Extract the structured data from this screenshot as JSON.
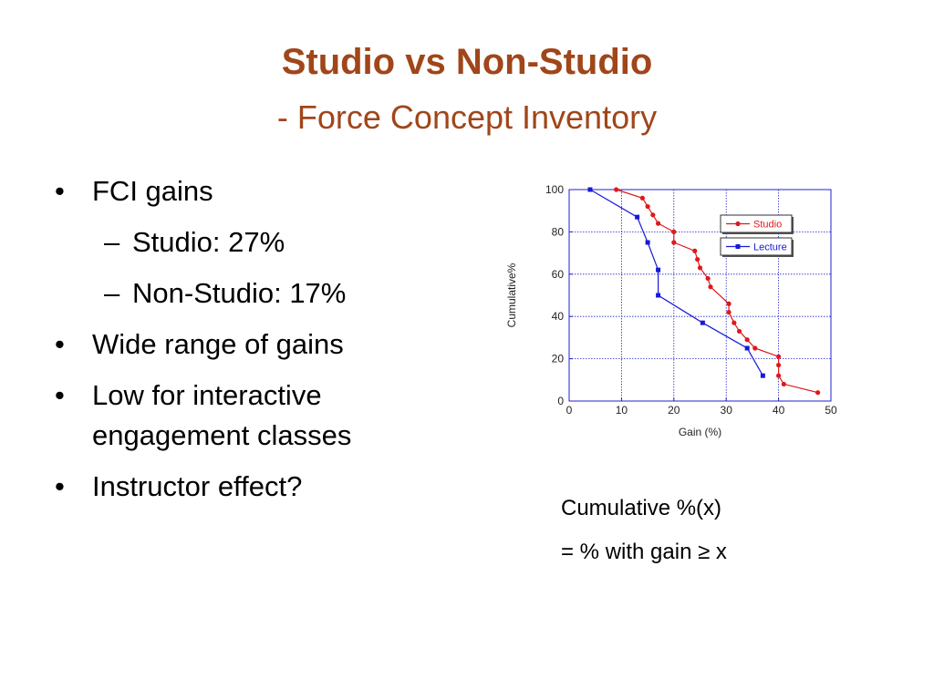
{
  "slide": {
    "title": "Studio vs Non-Studio",
    "subtitle": "- Force Concept Inventory"
  },
  "bullets": {
    "fci_gains": "FCI gains",
    "studio": "Studio:  27%",
    "non_studio": "Non-Studio:  17%",
    "wide_range": "Wide range of gains",
    "low_for": "Low for interactive engagement classes",
    "instructor": "Instructor effect?"
  },
  "note": {
    "line1": "Cumulative %(x)",
    "line2": "= % with gain ≥ x"
  },
  "chart_data": {
    "type": "line",
    "xlabel": "Gain (%)",
    "ylabel": "Cumulative%",
    "xlim": [
      0,
      50
    ],
    "ylim": [
      0,
      100
    ],
    "xticks": [
      0,
      10,
      20,
      30,
      40,
      50
    ],
    "yticks": [
      0,
      20,
      40,
      60,
      80,
      100
    ],
    "grid": true,
    "legend_position": "top-right",
    "series": [
      {
        "name": "Studio",
        "color": "#e0181b",
        "marker": "circle",
        "points": [
          [
            9,
            100
          ],
          [
            14,
            96
          ],
          [
            15,
            92
          ],
          [
            16,
            88
          ],
          [
            17,
            84
          ],
          [
            20,
            80
          ],
          [
            20,
            75
          ],
          [
            24,
            71
          ],
          [
            24.5,
            67
          ],
          [
            25,
            63
          ],
          [
            26.5,
            58
          ],
          [
            27,
            54
          ],
          [
            30.5,
            46
          ],
          [
            30.5,
            42
          ],
          [
            31.5,
            37
          ],
          [
            32.5,
            33
          ],
          [
            34,
            29
          ],
          [
            35.5,
            25
          ],
          [
            40,
            21
          ],
          [
            40,
            17
          ],
          [
            40,
            12
          ],
          [
            41,
            8
          ],
          [
            47.5,
            4
          ]
        ]
      },
      {
        "name": "Lecture",
        "color": "#1818d8",
        "marker": "square",
        "points": [
          [
            4,
            100
          ],
          [
            13,
            87
          ],
          [
            15,
            75
          ],
          [
            17,
            62
          ],
          [
            17,
            50
          ],
          [
            25.5,
            37
          ],
          [
            34,
            25
          ],
          [
            37,
            12
          ]
        ]
      }
    ]
  }
}
